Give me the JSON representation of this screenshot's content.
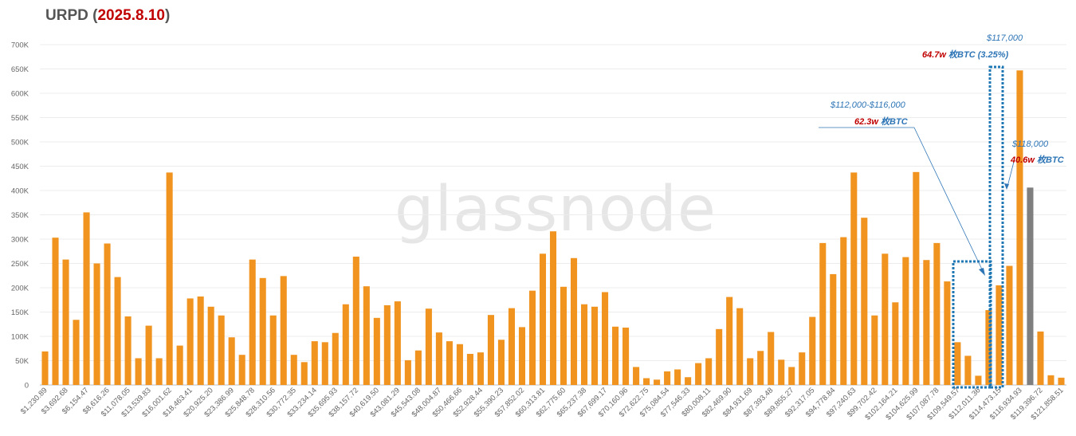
{
  "chart_data": {
    "type": "bar",
    "title": "URPD",
    "title_date": "2025.8.10",
    "ylim": [
      0,
      700000
    ],
    "yticks": [
      "0",
      "50K",
      "100K",
      "150K",
      "200K",
      "250K",
      "300K",
      "350K",
      "400K",
      "450K",
      "500K",
      "550K",
      "600K",
      "650K",
      "700K"
    ],
    "values": [
      69000,
      303000,
      258000,
      134000,
      355000,
      250000,
      291000,
      222000,
      141000,
      55000,
      122000,
      55000,
      437000,
      81000,
      178000,
      182000,
      161000,
      143000,
      98000,
      62000,
      258000,
      220000,
      143000,
      224000,
      62000,
      47000,
      90000,
      88000,
      107000,
      166000,
      264000,
      203000,
      138000,
      164000,
      172000,
      51000,
      71000,
      157000,
      108000,
      90000,
      84000,
      64000,
      67000,
      144000,
      93000,
      158000,
      119000,
      194000,
      270000,
      316000,
      202000,
      261000,
      166000,
      161000,
      191000,
      120000,
      118000,
      37000,
      14000,
      11000,
      28000,
      32000,
      16000,
      45000,
      55000,
      115000,
      181000,
      158000,
      55000,
      70000,
      109000,
      52000,
      37000,
      67000,
      140000,
      292000,
      228000,
      304000,
      437000,
      344000,
      143000,
      270000,
      170000,
      263000,
      438000,
      257000,
      292000,
      213000,
      88000,
      60000,
      19000,
      154000,
      205000,
      245000,
      647000,
      406000,
      110000,
      20000,
      15000
    ],
    "highlight_index": 95,
    "bar_color": "#f0931f",
    "highlight_color": "#7f7f7f",
    "xtick_labels": [
      "$1,230.89",
      "$3,692.68",
      "$6,154.47",
      "$8,616.26",
      "$11,078.05",
      "$13,539.83",
      "$16,001.62",
      "$18,463.41",
      "$20,925.20",
      "$23,386.99",
      "$25,848.78",
      "$28,310.56",
      "$30,772.35",
      "$33,234.14",
      "$35,695.93",
      "$38,157.72",
      "$40,619.50",
      "$43,081.29",
      "$45,543.08",
      "$48,004.87",
      "$50,466.66",
      "$52,928.44",
      "$55,390.23",
      "$57,852.02",
      "$60,313.81",
      "$62,775.60",
      "$65,237.38",
      "$67,699.17",
      "$70,160.96",
      "$72,622.75",
      "$75,084.54",
      "$77,546.33",
      "$80,008.11",
      "$82,469.90",
      "$84,931.69",
      "$87,393.48",
      "$89,855.27",
      "$92,317.05",
      "$94,778.84",
      "$97,240.63",
      "$99,702.42",
      "$102,164.21",
      "$104,625.99",
      "$107,087.78",
      "$109,549.57",
      "$112,011.36",
      "$114,473.15",
      "$116,934.93",
      "$119,396.72",
      "$121,858.51"
    ],
    "annotations": [
      {
        "price": "$117,000",
        "amount": "64.7w",
        "unit": " 枚BTC",
        "pct": "  (3.25%)"
      },
      {
        "price": "$112,000-$116,000",
        "amount": "62.3w",
        "unit": " 枚BTC"
      },
      {
        "price": "$118,000",
        "amount": "40.6w",
        "unit": " 枚BTC"
      }
    ],
    "watermark": "glassnode"
  }
}
